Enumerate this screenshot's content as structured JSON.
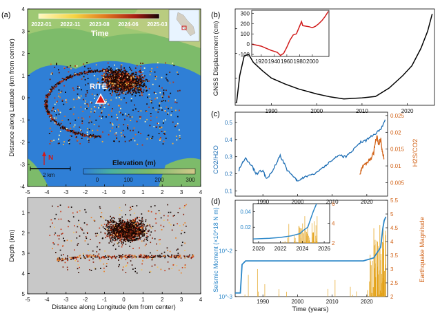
{
  "panel_labels": {
    "a": "(a)",
    "b": "(b)",
    "c": "(c)",
    "d": "(d)"
  },
  "colors": {
    "sea": "#2f7fd6",
    "land_low": "#7dbb6a",
    "land_high": "#c8cf8a",
    "quake_dark": "#1a0a05",
    "quake_mid": "#b8321a",
    "quake_light": "#f0b040",
    "gnss_line": "#000000",
    "inset_red": "#d11a1a",
    "co2": "#1f6fb5",
    "h2s": "#d2641a",
    "moment": "#2a86c8",
    "magnitude": "#e3a21a",
    "depth_bg": "#c8c8c8"
  },
  "map": {
    "time_label": "Time",
    "time_ticks": [
      "2022-01",
      "2022-11",
      "2023-08",
      "2024-06",
      "2025-03"
    ],
    "station": "RITE",
    "north": "N",
    "scalebar": "2 km",
    "elevation_label": "Elevation (m)",
    "elevation_ticks": [
      "0",
      "100",
      "200",
      "300"
    ],
    "ylabel": "Distance along Latitude (km from center)",
    "yticks": [
      "4",
      "3",
      "2",
      "1",
      "0",
      "-1",
      "-2",
      "-3",
      "-4"
    ],
    "xticks": [
      "-5",
      "-4",
      "-3",
      "-2",
      "-1",
      "0",
      "1",
      "2",
      "3",
      "4"
    ]
  },
  "depth": {
    "ylabel": "Depth (km)",
    "yticks": [
      "1",
      "2",
      "3",
      "4",
      "5"
    ],
    "xlabel": "Distance along Longitude (km from center)",
    "xticks": [
      "-5",
      "-4",
      "-3",
      "-2",
      "-1",
      "0",
      "1",
      "2",
      "3",
      "4"
    ]
  },
  "chart_data": [
    {
      "type": "line",
      "panel": "b",
      "ylabel": "GNSS Displacement (cm)",
      "xticks": [
        "1990",
        "2000",
        "2010",
        "2020"
      ],
      "xlim": [
        1982,
        2026
      ],
      "ylim": [
        145,
        340
      ],
      "series": [
        {
          "x": [
            1982.3,
            1983,
            1984,
            1985,
            1986,
            1988,
            1990,
            1993,
            1996,
            2000,
            2003,
            2006,
            2010,
            2013,
            2016,
            2019,
            2021,
            2023,
            2024.5,
            2025.5
          ],
          "y": [
            150,
            205,
            245,
            248,
            232,
            215,
            200,
            188,
            178,
            168,
            162,
            158,
            160,
            163,
            180,
            205,
            225,
            260,
            295,
            330
          ]
        }
      ]
    },
    {
      "type": "line",
      "panel": "b-inset",
      "xticks": [
        "1920",
        "1940",
        "1960",
        "1980",
        "2000"
      ],
      "yticks": [
        "300",
        "200",
        "100",
        "0",
        "-100"
      ],
      "xlim": [
        1905,
        2026
      ],
      "ylim": [
        -120,
        330
      ],
      "series": [
        {
          "x": [
            1905,
            1920,
            1935,
            1945,
            1950,
            1955,
            1960,
            1965,
            1970,
            1975,
            1983,
            1984,
            1985,
            1995,
            2000,
            2005,
            2010,
            2015,
            2020,
            2025
          ],
          "y": [
            0,
            -20,
            -60,
            -80,
            -110,
            -90,
            -30,
            40,
            90,
            100,
            220,
            200,
            180,
            170,
            160,
            175,
            200,
            230,
            270,
            320
          ]
        }
      ]
    },
    {
      "type": "line",
      "panel": "c",
      "ylabel_left": "CO2/H2O",
      "ylabel_right": "H2S/CO2",
      "yticks_left": [
        "0.1",
        "0.2",
        "0.3",
        "0.4",
        "0.5"
      ],
      "yticks_right": [
        "0.005",
        "0.01",
        "0.015",
        "0.02",
        "0.025"
      ],
      "xticks": [
        "1990",
        "2000",
        "2010",
        "2020"
      ],
      "xlim": [
        1982,
        2026
      ],
      "ylim": [
        0.07,
        0.56
      ],
      "ylim_right": [
        0.001,
        0.026
      ],
      "series": [
        {
          "name": "CO2/H2O",
          "x": [
            1983,
            1984,
            1985,
            1987,
            1988,
            1990,
            1991,
            1993,
            1995,
            1997,
            1999,
            2000,
            2002,
            2005,
            2008,
            2010,
            2012,
            2014,
            2016,
            2018,
            2020,
            2022,
            2024,
            2025.5
          ],
          "y": [
            0.22,
            0.26,
            0.29,
            0.24,
            0.2,
            0.22,
            0.17,
            0.22,
            0.31,
            0.22,
            0.18,
            0.16,
            0.18,
            0.2,
            0.25,
            0.28,
            0.31,
            0.3,
            0.34,
            0.38,
            0.4,
            0.43,
            0.46,
            0.53
          ]
        },
        {
          "name": "H2S/CO2",
          "x": [
            2018,
            2019,
            2020,
            2021,
            2022,
            2022.5,
            2023,
            2023.5,
            2024,
            2024.5,
            2025
          ],
          "y": [
            0.008,
            0.01,
            0.011,
            0.012,
            0.014,
            0.017,
            0.019,
            0.016,
            0.018,
            0.014,
            0.012
          ]
        }
      ]
    },
    {
      "type": "line",
      "panel": "d",
      "ylabel_left": "Seismic Moment (×10^18 N m)",
      "ylabel_right": "Earthquake Magnitude",
      "xlabel": "Time (years)",
      "yticks_left": [
        "10^-3",
        "10^-2"
      ],
      "yticks_right": [
        "2",
        "2.5",
        "3",
        "3.5",
        "4",
        "4.5",
        "5",
        "5.5"
      ],
      "xticks": [
        "1990",
        "2000",
        "2010",
        "2020"
      ],
      "xlim": [
        1982,
        2026
      ],
      "series": [
        {
          "name": "moment",
          "x": [
            1982,
            1983.5,
            1984,
            1985,
            2019,
            2022,
            2024,
            2024.6,
            2025,
            2025.5
          ],
          "y": [
            0.0012,
            0.0012,
            0.005,
            0.006,
            0.006,
            0.007,
            0.012,
            0.03,
            0.045,
            0.055
          ]
        }
      ]
    },
    {
      "type": "line",
      "panel": "d-inset",
      "yticks_left": [
        "0.02",
        "0.04"
      ],
      "yticks_right": [
        "2",
        "4",
        "6"
      ],
      "xticks": [
        "2020",
        "2022",
        "2024",
        "2026"
      ],
      "xlim": [
        2019.5,
        2026.5
      ],
      "series": [
        {
          "name": "moment",
          "x": [
            2019.5,
            2021,
            2022,
            2023,
            2023.8,
            2024,
            2024.5,
            2024.8,
            2025,
            2025.3
          ],
          "y": [
            0.005,
            0.006,
            0.007,
            0.009,
            0.012,
            0.015,
            0.02,
            0.032,
            0.04,
            0.05
          ]
        }
      ]
    }
  ]
}
